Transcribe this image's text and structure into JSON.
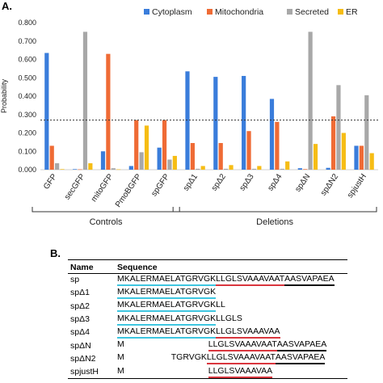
{
  "panel_a_label": "A.",
  "panel_b_label": "B.",
  "colors": {
    "Cytoplasm": "#3a7ddb",
    "Mitochondria": "#ef6b35",
    "Secreted": "#a8a8a8",
    "ER": "#f6bd15",
    "seq_blue_underline": "#3ec6e0",
    "seq_red_underline": "#d9363e",
    "seq_black_underline": "#111111"
  },
  "chart_data": {
    "type": "bar",
    "ylabel": "Probability",
    "ylim": [
      0,
      0.8
    ],
    "yticks": [
      "0.000",
      "0.100",
      "0.200",
      "0.300",
      "0.400",
      "0.500",
      "0.600",
      "0.700",
      "0.800"
    ],
    "reference_line": 0.27,
    "categories": [
      "GFP",
      "secGFP",
      "mitoGFP",
      "PmoBGFP",
      "spGFP",
      "spΔ1",
      "spΔ2",
      "spΔ3",
      "spΔ4",
      "spΔN",
      "spΔN2",
      "spjustH"
    ],
    "series": [
      {
        "name": "Cytoplasm",
        "values": [
          0.635,
          0.003,
          0.1,
          0.02,
          0.12,
          0.535,
          0.505,
          0.51,
          0.385,
          0.008,
          0.01,
          0.13
        ]
      },
      {
        "name": "Mitochondria",
        "values": [
          0.13,
          0.002,
          0.63,
          0.27,
          0.27,
          0.145,
          0.145,
          0.21,
          0.26,
          0.003,
          0.29,
          0.13
        ]
      },
      {
        "name": "Secreted",
        "values": [
          0.035,
          0.75,
          0.008,
          0.095,
          0.055,
          0.005,
          0.005,
          0.005,
          0.005,
          0.75,
          0.46,
          0.405
        ]
      },
      {
        "name": "ER",
        "values": [
          0.003,
          0.035,
          0.002,
          0.24,
          0.075,
          0.02,
          0.025,
          0.02,
          0.045,
          0.14,
          0.2,
          0.09
        ]
      }
    ],
    "groups": [
      {
        "label": "Controls",
        "categories": [
          "GFP",
          "secGFP",
          "mitoGFP",
          "PmoBGFP",
          "spGFP"
        ]
      },
      {
        "label": "Deletions",
        "categories": [
          "spΔ1",
          "spΔ2",
          "spΔ3",
          "spΔ4",
          "spΔN",
          "spΔN2",
          "spjustH"
        ]
      }
    ],
    "legend_position": "top-right"
  },
  "sequence_table": {
    "headers": [
      "Name",
      "Sequence"
    ],
    "rows": [
      {
        "name": "sp",
        "segments": [
          {
            "text": "MKALERMAELATGRVGK",
            "underline": "blue"
          },
          {
            "text": "LLGLSVAAAVAAT",
            "underline": "red"
          },
          {
            "text": "AASVAPAEA",
            "underline": "black"
          }
        ]
      },
      {
        "name": "spΔ1",
        "segments": [
          {
            "text": "MKALERMAELATGRVGK",
            "underline": "blue"
          }
        ]
      },
      {
        "name": "spΔ2",
        "segments": [
          {
            "text": "MKALERMAELATGRVGK",
            "underline": "blue"
          },
          {
            "text": "LL",
            "underline": "none"
          }
        ]
      },
      {
        "name": "spΔ3",
        "segments": [
          {
            "text": "MKALERMAELATGRVGK",
            "underline": "blue"
          },
          {
            "text": "LLGLS",
            "underline": "none"
          }
        ]
      },
      {
        "name": "spΔ4",
        "segments": [
          {
            "text": "MKALERMAELATGRVGK",
            "underline": "blue"
          },
          {
            "text": "LLGLSVAAAVAA",
            "underline": "red"
          }
        ]
      },
      {
        "name": "spΔN",
        "segments": [
          {
            "text": "M",
            "underline": "none",
            "gap": 104
          },
          {
            "text": "LLGLSVAAAVAAT",
            "underline": "red"
          },
          {
            "text": "AASVAPAEA",
            "underline": "black"
          }
        ]
      },
      {
        "name": "spΔN2",
        "segments": [
          {
            "text": "M",
            "underline": "none",
            "gap": 58
          },
          {
            "text": "TGRVGK",
            "underline": "none"
          },
          {
            "text": "LLGLSVAAAVAAT",
            "underline": "red"
          },
          {
            "text": "AASVAPAEA",
            "underline": "black"
          }
        ]
      },
      {
        "name": "spjustH",
        "segments": [
          {
            "text": "M",
            "underline": "none",
            "gap": 104
          },
          {
            "text": "LLGLSVAAAVAA",
            "underline": "red"
          }
        ]
      }
    ]
  }
}
